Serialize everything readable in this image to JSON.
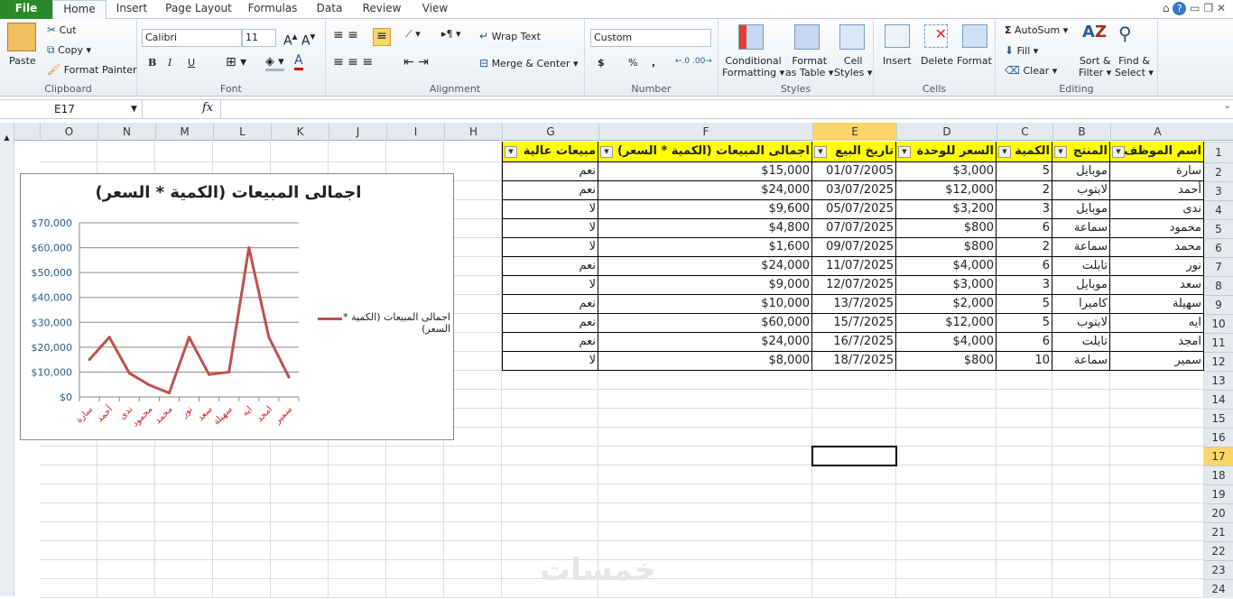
{
  "tabs": [
    "File",
    "Home",
    "Insert",
    "Page Layout",
    "Formulas",
    "Data",
    "Review",
    "View"
  ],
  "clipboard": {
    "paste": "Paste",
    "cut": "Cut",
    "copy": "Copy",
    "format_painter": "Format Painter",
    "label": "Clipboard"
  },
  "font": {
    "name": "Calibri",
    "size": "11",
    "label": "Font",
    "bold": "B",
    "italic": "I",
    "underline": "U"
  },
  "alignment": {
    "wrap": "Wrap Text",
    "merge": "Merge & Center",
    "label": "Alignment"
  },
  "number": {
    "format": "Custom",
    "currency": "$",
    "percent": "%",
    "comma": ",",
    "label": "Number"
  },
  "styles": {
    "conditional": "Conditional",
    "conditional2": "Formatting",
    "format_table": "Format",
    "format_table2": "as Table",
    "cell_styles": "Cell",
    "cell_styles2": "Styles",
    "label": "Styles"
  },
  "cells": {
    "insert": "Insert",
    "delete": "Delete",
    "format": "Format",
    "label": "Cells"
  },
  "editing": {
    "autosum": "AutoSum",
    "fill": "Fill",
    "clear": "Clear",
    "sort": "Sort &",
    "sort2": "Filter",
    "find": "Find &",
    "find2": "Select",
    "label": "Editing"
  },
  "formula_bar": {
    "name_box": "E17",
    "fx": "fx",
    "value": ""
  },
  "columns": [
    "A",
    "B",
    "C",
    "D",
    "E",
    "F",
    "G",
    "H",
    "I",
    "J",
    "K",
    "L",
    "M",
    "N",
    "O"
  ],
  "selected_cell": "E17",
  "table": {
    "headers": [
      "اسم الموظف",
      "المنتج",
      "الكمية",
      "السعر للوحدة",
      "تاريخ البيع",
      "اجمالى المبيعات (الكمية * السعر)",
      "مبيعات عالية"
    ],
    "rows": [
      [
        "سارة",
        "موبايل",
        "5",
        "$3,000",
        "01/07/2005",
        "$15,000",
        "نعم"
      ],
      [
        "أحمد",
        "لابتوب",
        "2",
        "$12,000",
        "03/07/2025",
        "$24,000",
        "نعم"
      ],
      [
        "ندى",
        "موبايل",
        "3",
        "$3,200",
        "05/07/2025",
        "$9,600",
        "لا"
      ],
      [
        "محمود",
        "سماعة",
        "6",
        "$800",
        "07/07/2025",
        "$4,800",
        "لا"
      ],
      [
        "محمد",
        "سماعة",
        "2",
        "$800",
        "09/07/2025",
        "$1,600",
        "لا"
      ],
      [
        "نور",
        "تابلت",
        "6",
        "$4,000",
        "11/07/2025",
        "$24,000",
        "نعم"
      ],
      [
        "سعد",
        "موبايل",
        "3",
        "$3,000",
        "12/07/2025",
        "$9,000",
        "لا"
      ],
      [
        "سهيلة",
        "كاميرا",
        "5",
        "$2,000",
        "13/7/2025",
        "$10,000",
        "نعم"
      ],
      [
        "ايه",
        "لابتوب",
        "5",
        "$12,000",
        "15/7/2025",
        "$60,000",
        "نعم"
      ],
      [
        "امجد",
        "تابلت",
        "6",
        "$4,000",
        "16/7/2025",
        "$24,000",
        "نعم"
      ],
      [
        "سمير",
        "سماعة",
        "10",
        "$800",
        "18/7/2025",
        "$8,000",
        "لا"
      ]
    ]
  },
  "chart_data": {
    "type": "line",
    "title": "اجمالى المبيعات (الكمية * السعر)",
    "categories": [
      "سارة",
      "أحمد",
      "ندى",
      "محمود",
      "محمد",
      "نور",
      "سعد",
      "سهيلة",
      "ايه",
      "امجد",
      "سمير"
    ],
    "series": [
      {
        "name": "اجمالى المبيعات (الكمية * السعر)",
        "values": [
          15000,
          24000,
          9600,
          4800,
          1600,
          24000,
          9000,
          10000,
          60000,
          24000,
          8000
        ],
        "color": "#c0504d"
      }
    ],
    "yticks": [
      "$0",
      "$10,000",
      "$20,000",
      "$30,000",
      "$40,000",
      "$50,000",
      "$60,000",
      "$70,000"
    ],
    "ylim": [
      0,
      70000
    ],
    "grid": true,
    "legend": "right"
  }
}
